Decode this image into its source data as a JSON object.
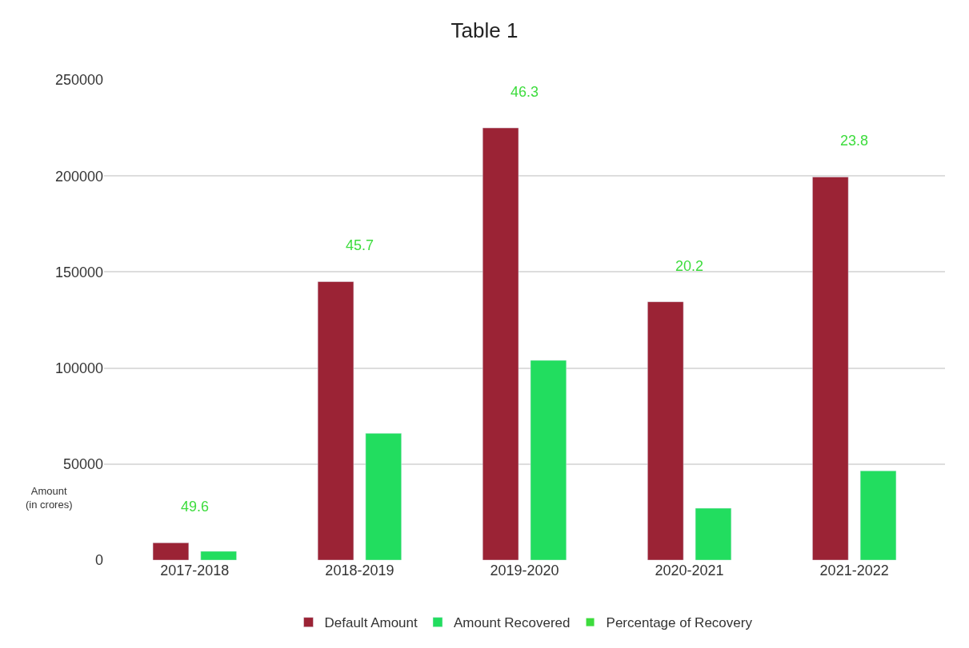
{
  "chart_data": {
    "type": "bar",
    "title": "Table 1",
    "ylabel": "Amount (in crores)",
    "categories": [
      "2017-2018",
      "2018-2019",
      "2019-2020",
      "2020-2021",
      "2021-2022"
    ],
    "series": [
      {
        "name": "Default Amount",
        "color": "#9b2335",
        "values": [
          9000,
          145000,
          225000,
          134500,
          199500
        ]
      },
      {
        "name": "Amount Recovered",
        "color": "#22dd5f",
        "values": [
          4600,
          66000,
          104000,
          27000,
          46500
        ]
      },
      {
        "name": "Percentage of Recovery",
        "color": "#3ddc3d",
        "values": [
          null,
          null,
          null,
          null,
          null
        ]
      }
    ],
    "annotations": [
      "49.6",
      "45.7",
      "46.3",
      "20.2",
      "23.8"
    ],
    "ylim": [
      0,
      250000
    ],
    "yticks": [
      0,
      50000,
      100000,
      150000,
      200000,
      250000
    ],
    "grid": "y",
    "legend": "bottom"
  }
}
